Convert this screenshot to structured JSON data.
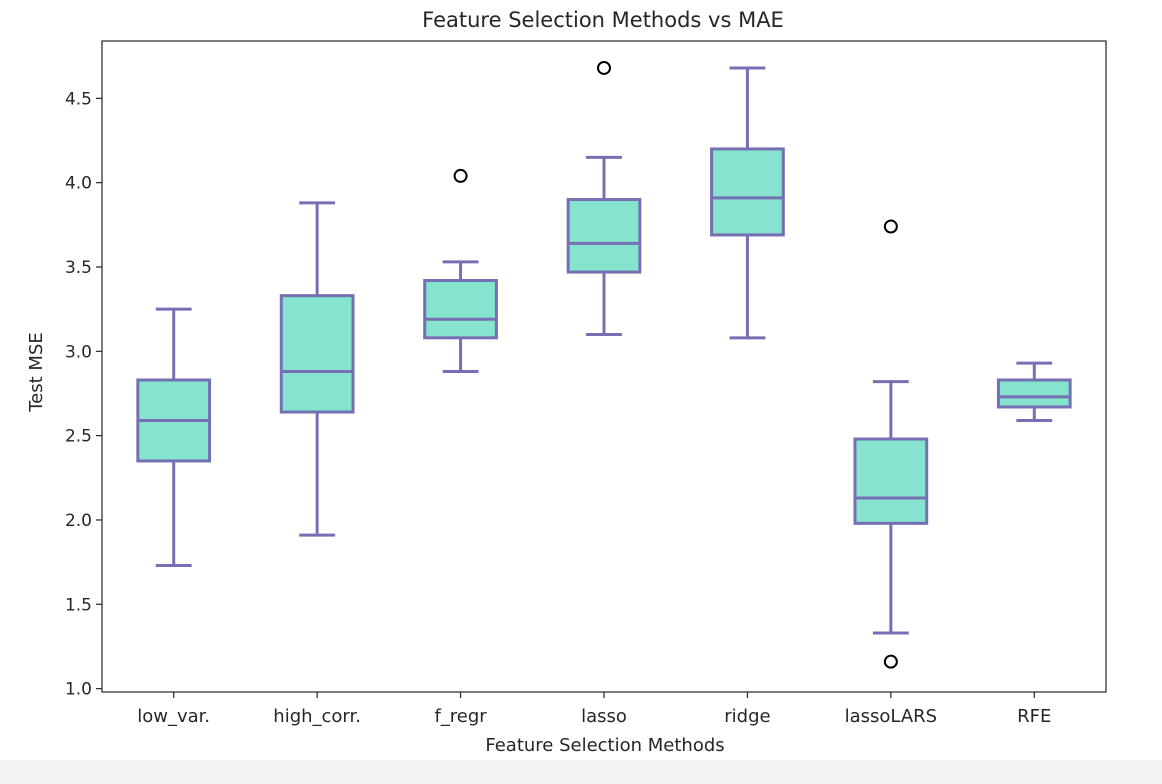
{
  "chart_data": {
    "type": "box",
    "title": "Feature Selection Methods vs MAE",
    "xlabel": "Feature Selection Methods",
    "ylabel": "Test MSE",
    "ylim": [
      0.98,
      4.84
    ],
    "yticks": [
      1.0,
      1.5,
      2.0,
      2.5,
      3.0,
      3.5,
      4.0,
      4.5
    ],
    "ytick_labels": [
      "1.0",
      "1.5",
      "2.0",
      "2.5",
      "3.0",
      "3.5",
      "4.0",
      "4.5"
    ],
    "categories": [
      "low_var.",
      "high_corr.",
      "f_regr",
      "lasso",
      "ridge",
      "lassoLARS",
      "RFE"
    ],
    "boxes": [
      {
        "whisker_low": 1.73,
        "q1": 2.35,
        "median": 2.59,
        "q3": 2.83,
        "whisker_high": 3.25,
        "fliers": []
      },
      {
        "whisker_low": 1.91,
        "q1": 2.64,
        "median": 2.88,
        "q3": 3.33,
        "whisker_high": 3.88,
        "fliers": []
      },
      {
        "whisker_low": 2.88,
        "q1": 3.08,
        "median": 3.19,
        "q3": 3.42,
        "whisker_high": 3.53,
        "fliers": [
          4.04
        ]
      },
      {
        "whisker_low": 3.1,
        "q1": 3.47,
        "median": 3.64,
        "q3": 3.9,
        "whisker_high": 4.15,
        "fliers": [
          4.68
        ]
      },
      {
        "whisker_low": 3.08,
        "q1": 3.69,
        "median": 3.91,
        "q3": 4.2,
        "whisker_high": 4.68,
        "fliers": []
      },
      {
        "whisker_low": 1.33,
        "q1": 1.98,
        "median": 2.13,
        "q3": 2.48,
        "whisker_high": 2.82,
        "fliers": [
          3.74,
          1.16
        ]
      },
      {
        "whisker_low": 2.59,
        "q1": 2.67,
        "median": 2.73,
        "q3": 2.83,
        "whisker_high": 2.93,
        "fliers": []
      }
    ],
    "colors": {
      "box_fill": "#86e3ce",
      "box_edge": "#7570b3",
      "flier_edge": "#000000"
    },
    "grid": false,
    "legend": "none"
  }
}
